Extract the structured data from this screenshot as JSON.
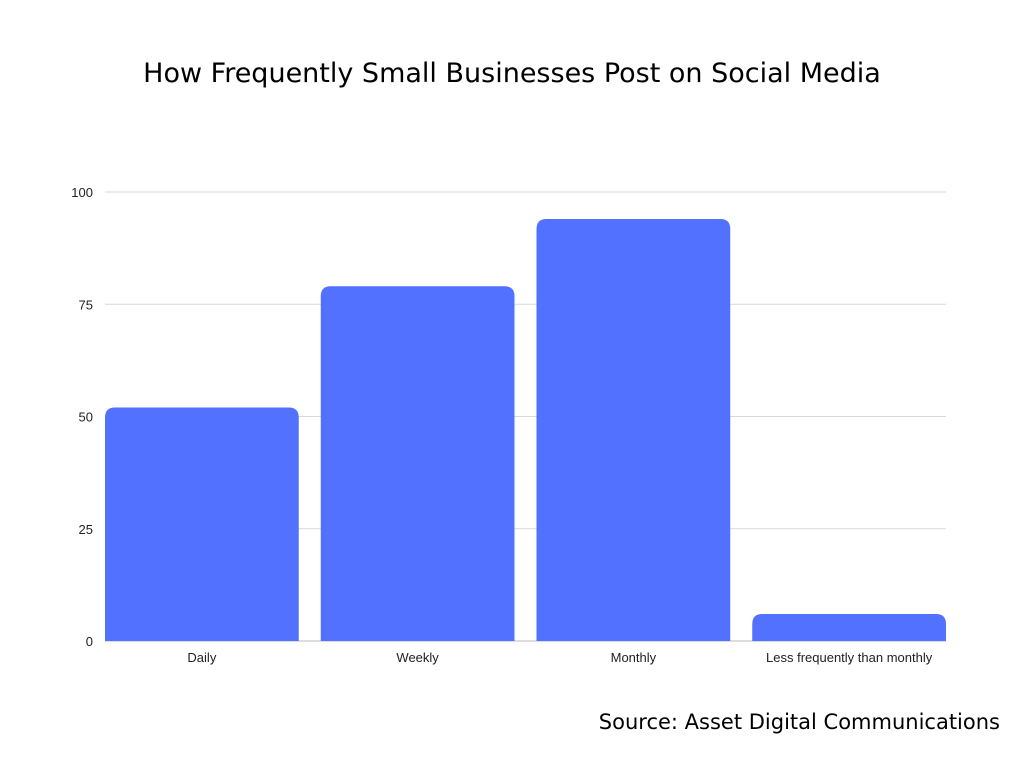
{
  "chart_data": {
    "type": "bar",
    "title": "How Frequently Small Businesses Post on Social Media",
    "categories": [
      "Daily",
      "Weekly",
      "Monthly",
      "Less frequently than monthly"
    ],
    "values": [
      52,
      79,
      94,
      6
    ],
    "xlabel": "",
    "ylabel": "",
    "ylim": [
      0,
      100
    ],
    "yticks": [
      0,
      25,
      50,
      75,
      100
    ],
    "grid": true,
    "bar_color": "#5271FF",
    "source": "Source: Asset Digital Communications"
  }
}
